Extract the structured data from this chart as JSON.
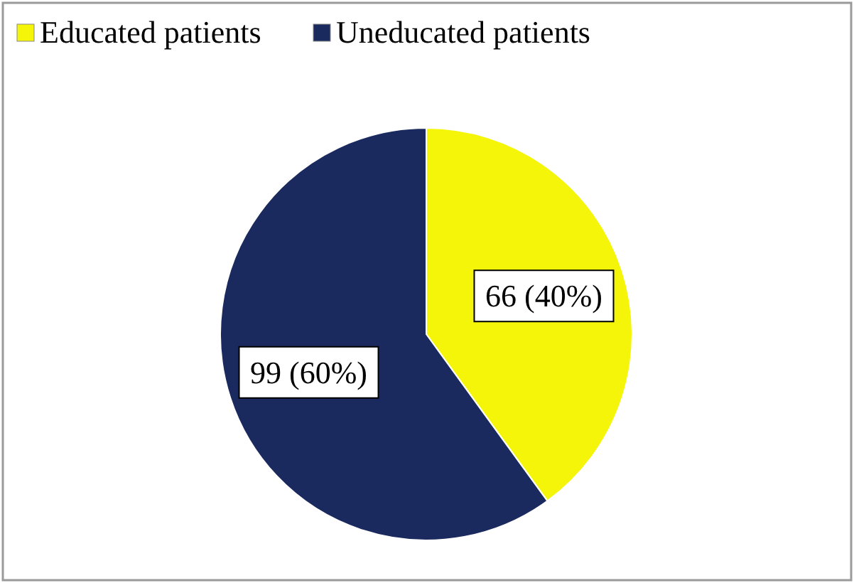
{
  "chart_data": {
    "type": "pie",
    "categories": [
      "Educated patients",
      "Uneducated patients"
    ],
    "values": [
      66,
      99
    ],
    "colors": [
      "#f5f50a",
      "#1b2a5e"
    ],
    "value_labels": [
      "66 (40%)",
      "99 (60%)"
    ],
    "legend": "top left"
  }
}
